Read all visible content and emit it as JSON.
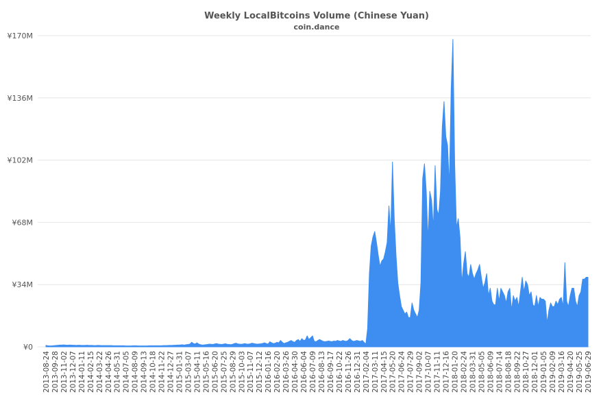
{
  "chart_data": {
    "type": "area",
    "title": "Weekly LocalBitcoins Volume (Chinese Yuan)",
    "subtitle": "coin.dance",
    "categories": [
      "2013-08-24",
      null,
      null,
      null,
      null,
      "2013-09-28",
      null,
      null,
      null,
      null,
      "2013-11-02",
      null,
      null,
      null,
      null,
      "2013-12-07",
      null,
      null,
      null,
      null,
      "2014-01-11",
      null,
      null,
      null,
      null,
      "2014-02-15",
      null,
      null,
      null,
      null,
      "2014-03-22",
      null,
      null,
      null,
      null,
      "2014-04-26",
      null,
      null,
      null,
      null,
      "2014-05-31",
      null,
      null,
      null,
      null,
      "2014-07-05",
      null,
      null,
      null,
      null,
      "2014-08-09",
      null,
      null,
      null,
      null,
      "2014-09-13",
      null,
      null,
      null,
      null,
      "2014-10-18",
      null,
      null,
      null,
      null,
      "2014-11-22",
      null,
      null,
      null,
      null,
      "2014-12-27",
      null,
      null,
      null,
      null,
      "2015-01-31",
      null,
      null,
      null,
      null,
      "2015-03-07",
      null,
      null,
      null,
      null,
      "2015-04-11",
      null,
      null,
      null,
      null,
      "2015-05-16",
      null,
      null,
      null,
      null,
      "2015-06-20",
      null,
      null,
      null,
      null,
      "2015-07-25",
      null,
      null,
      null,
      null,
      "2015-08-29",
      null,
      null,
      null,
      null,
      "2015-10-03",
      null,
      null,
      null,
      null,
      "2015-11-07",
      null,
      null,
      null,
      null,
      "2015-12-12",
      null,
      null,
      null,
      null,
      "2016-01-16",
      null,
      null,
      null,
      null,
      "2016-02-20",
      null,
      null,
      null,
      null,
      "2016-03-26",
      null,
      null,
      null,
      null,
      "2016-04-30",
      null,
      null,
      null,
      null,
      "2016-06-04",
      null,
      null,
      null,
      null,
      "2016-07-09",
      null,
      null,
      null,
      null,
      "2016-08-13",
      null,
      null,
      null,
      null,
      "2016-09-17",
      null,
      null,
      null,
      null,
      "2016-10-22",
      null,
      null,
      null,
      null,
      "2016-11-26",
      null,
      null,
      null,
      null,
      "2016-12-31",
      null,
      null,
      null,
      null,
      "2017-02-04",
      null,
      null,
      null,
      null,
      "2017-03-11",
      null,
      null,
      null,
      null,
      "2017-04-15",
      null,
      null,
      null,
      null,
      "2017-05-20",
      null,
      null,
      null,
      null,
      "2017-06-24",
      null,
      null,
      null,
      null,
      "2017-07-29",
      null,
      null,
      null,
      null,
      "2017-09-02",
      null,
      null,
      null,
      null,
      "2017-10-07",
      null,
      null,
      null,
      null,
      "2017-11-11",
      null,
      null,
      null,
      null,
      "2017-12-16",
      null,
      null,
      null,
      null,
      "2018-01-20",
      null,
      null,
      null,
      null,
      "2018-02-24",
      null,
      null,
      null,
      null,
      "2018-03-31",
      null,
      null,
      null,
      null,
      "2018-05-05",
      null,
      null,
      null,
      null,
      "2018-06-09",
      null,
      null,
      null,
      null,
      "2018-07-14",
      null,
      null,
      null,
      null,
      "2018-08-18",
      null,
      null,
      null,
      null,
      "2018-09-22",
      null,
      null,
      null,
      null,
      "2018-10-27",
      null,
      null,
      null,
      null,
      "2018-12-01",
      null,
      null,
      null,
      null,
      "2019-01-05",
      null,
      null,
      null,
      null,
      "2019-02-09",
      null,
      null,
      null,
      null,
      "2019-03-16",
      null,
      null,
      null,
      null,
      "2019-04-20",
      null,
      null,
      null,
      null,
      "2019-05-25",
      null,
      null,
      null,
      null,
      "2019-06-29"
    ],
    "values": [
      0.8,
      0.6,
      0.5,
      0.5,
      0.6,
      0.7,
      0.8,
      0.9,
      1.0,
      1.0,
      1.1,
      1.0,
      0.9,
      1.0,
      1.0,
      0.9,
      0.9,
      0.8,
      0.9,
      0.9,
      0.8,
      0.8,
      0.8,
      0.9,
      0.8,
      0.8,
      0.8,
      0.7,
      0.7,
      0.8,
      0.8,
      0.7,
      0.7,
      0.7,
      0.7,
      0.7,
      0.7,
      0.7,
      0.6,
      0.6,
      0.6,
      0.6,
      0.6,
      0.6,
      0.6,
      0.5,
      0.5,
      0.5,
      0.5,
      0.6,
      0.6,
      0.6,
      0.5,
      0.5,
      0.5,
      0.5,
      0.5,
      0.5,
      0.6,
      0.6,
      0.6,
      0.6,
      0.6,
      0.6,
      0.6,
      0.6,
      0.7,
      0.7,
      0.7,
      0.8,
      0.8,
      0.8,
      0.9,
      0.9,
      1.0,
      1.0,
      1.1,
      1.1,
      1.0,
      1.2,
      1.3,
      1.5,
      2.5,
      1.8,
      1.6,
      2.2,
      1.5,
      1.2,
      1.0,
      1.1,
      1.2,
      1.3,
      1.5,
      1.4,
      1.3,
      1.6,
      1.8,
      1.5,
      1.4,
      1.3,
      1.5,
      1.7,
      1.4,
      1.3,
      1.2,
      1.4,
      1.8,
      2.0,
      1.6,
      1.5,
      1.4,
      1.6,
      1.8,
      1.5,
      1.5,
      1.7,
      2.0,
      1.8,
      1.6,
      1.5,
      1.6,
      1.7,
      1.9,
      2.2,
      1.8,
      1.5,
      2.8,
      2.2,
      1.8,
      2.0,
      2.5,
      2.2,
      3.5,
      2.5,
      1.8,
      2.2,
      2.5,
      3.0,
      3.5,
      2.8,
      2.5,
      3.5,
      4.0,
      3.0,
      4.5,
      3.5,
      3.8,
      6.0,
      4.0,
      5.0,
      6.0,
      3.0,
      2.8,
      3.5,
      4.0,
      3.5,
      3.0,
      2.8,
      3.0,
      3.2,
      3.0,
      2.8,
      3.2,
      3.0,
      3.5,
      3.2,
      3.0,
      3.5,
      3.2,
      3.0,
      3.5,
      4.5,
      3.5,
      3.0,
      3.2,
      3.5,
      3.2,
      3.0,
      3.5,
      2.5,
      1.5,
      10,
      40,
      55,
      60,
      63,
      57,
      50,
      44,
      47,
      48,
      52,
      57,
      77,
      62,
      101,
      70,
      50,
      35,
      28,
      22,
      20,
      18,
      19,
      16,
      16,
      24,
      20,
      18,
      16,
      20,
      35,
      92,
      100,
      85,
      58,
      85,
      80,
      65,
      99,
      75,
      72,
      85,
      120,
      134,
      115,
      110,
      88,
      140,
      168,
      100,
      65,
      70,
      60,
      35,
      45,
      52,
      40,
      38,
      45,
      40,
      37,
      40,
      42,
      45,
      38,
      32,
      35,
      40,
      28,
      32,
      25,
      23,
      23,
      32,
      25,
      32,
      30,
      28,
      24,
      30,
      32,
      20,
      28,
      25,
      27,
      22,
      30,
      38,
      30,
      36,
      34,
      28,
      30,
      23,
      22,
      28,
      22,
      27,
      26,
      26,
      25,
      13,
      20,
      24,
      22,
      22,
      25,
      23,
      26,
      27,
      22,
      46,
      25,
      22,
      28,
      32,
      32,
      25,
      22,
      28,
      30,
      37,
      37,
      38,
      38
    ],
    "color": "#3d8ef0",
    "ylim": [
      0,
      170
    ],
    "yticks": [
      {
        "value": 0,
        "label": "¥0"
      },
      {
        "value": 34,
        "label": "¥34M"
      },
      {
        "value": 68,
        "label": "¥68M"
      },
      {
        "value": 102,
        "label": "¥102M"
      },
      {
        "value": 136,
        "label": "¥136M"
      },
      {
        "value": 170,
        "label": "¥170M"
      }
    ],
    "grid": true
  }
}
